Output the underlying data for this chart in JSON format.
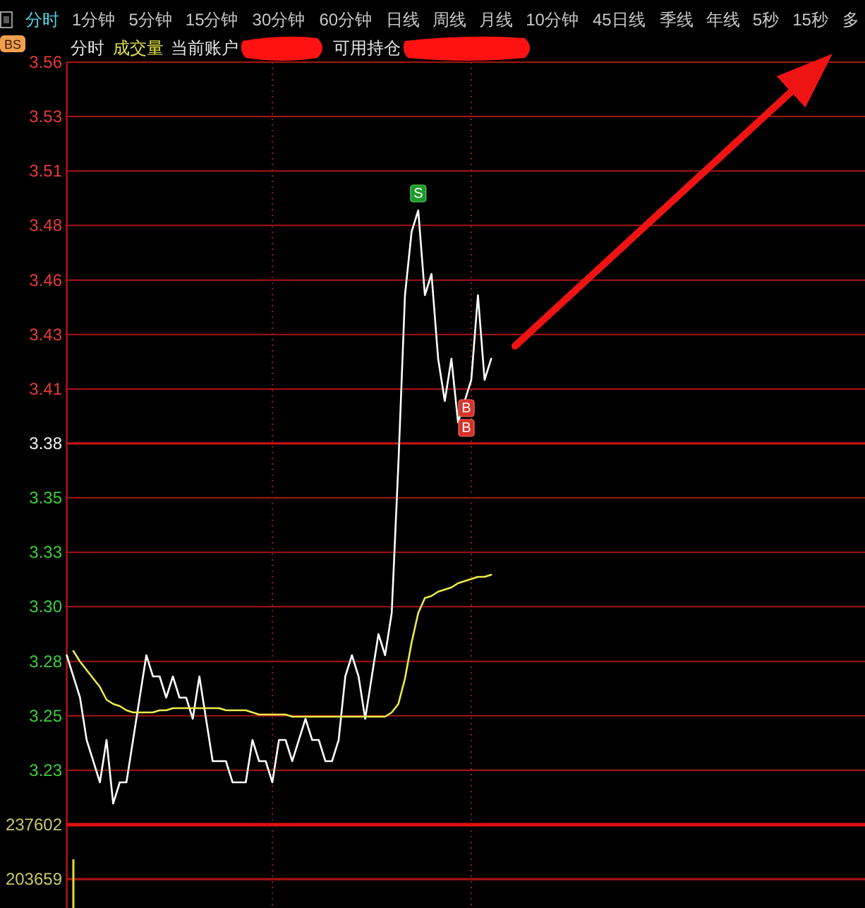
{
  "chart_data": [
    {
      "type": "other",
      "annotations": [
        "分时",
        "1分钟",
        "5分钟",
        "15分钟",
        "30分钟",
        "60分钟",
        "日线",
        "周线",
        "月线",
        "10分钟",
        "45日线",
        "季线",
        "年线",
        "5秒",
        "15秒",
        "多"
      ]
    },
    {
      "type": "line",
      "title": "分时",
      "categories": [
        null,
        null,
        null,
        null,
        null,
        null,
        null,
        null,
        null,
        null,
        null,
        null,
        null,
        null,
        null,
        null,
        null,
        null,
        null,
        null,
        null,
        null,
        null,
        null,
        null,
        null,
        null,
        null,
        null,
        null,
        null,
        null,
        null,
        null,
        null,
        null,
        null,
        null,
        null,
        null,
        null,
        null,
        null,
        null,
        null,
        null,
        null,
        null,
        null,
        null,
        null,
        null,
        null,
        null,
        null,
        null,
        null,
        null,
        null,
        null,
        null,
        null,
        null,
        null,
        null,
        null,
        null,
        null,
        null,
        null,
        null,
        null,
        null,
        null,
        null,
        null,
        null,
        null,
        null,
        null,
        null,
        null,
        null,
        null,
        null,
        null,
        null,
        null,
        null,
        null,
        null,
        null,
        null,
        null,
        null,
        null,
        null,
        null,
        null,
        null,
        null,
        null,
        null,
        null,
        null,
        null,
        null,
        null,
        null,
        null,
        null,
        null,
        null,
        null,
        null,
        null,
        null,
        null,
        null,
        null
      ],
      "series": [
        {
          "color": "#ffffff",
          "values": [
            3.28,
            3.27,
            3.26,
            3.24,
            3.23,
            3.22,
            3.24,
            3.21,
            3.22,
            3.22,
            3.24,
            3.26,
            3.28,
            3.27,
            3.27,
            3.26,
            3.27,
            3.26,
            3.26,
            3.25,
            3.27,
            3.25,
            3.23,
            3.23,
            3.23,
            3.22,
            3.22,
            3.22,
            3.24,
            3.23,
            3.23,
            3.22,
            3.24,
            3.24,
            3.23,
            3.24,
            3.25,
            3.24,
            3.24,
            3.23,
            3.23,
            3.24,
            3.27,
            3.28,
            3.27,
            3.25,
            3.27,
            3.29,
            3.28,
            3.3,
            3.37,
            3.45,
            3.48,
            3.49,
            3.45,
            3.46,
            3.42,
            3.4,
            3.42,
            3.39,
            3.4,
            3.41,
            3.45,
            3.41,
            3.42,
            null,
            null,
            null,
            null,
            null,
            null,
            null,
            null,
            null,
            null,
            null,
            null,
            null,
            null,
            null,
            null,
            null,
            null,
            null,
            null,
            null,
            null,
            null,
            null,
            null,
            null,
            null,
            null,
            null,
            null,
            null,
            null,
            null,
            null,
            null,
            null,
            null,
            null,
            null,
            null,
            null,
            null,
            null,
            null,
            null,
            null,
            null,
            null,
            null,
            null,
            null,
            null,
            null,
            null,
            null
          ]
        },
        {
          "color": "#ecec48",
          "values": [
            null,
            3.282,
            3.277,
            3.273,
            3.269,
            3.265,
            3.259,
            3.257,
            3.256,
            3.254,
            3.253,
            3.253,
            3.253,
            3.253,
            3.254,
            3.254,
            3.255,
            3.255,
            3.255,
            3.255,
            3.255,
            3.255,
            3.255,
            3.255,
            3.254,
            3.254,
            3.254,
            3.254,
            3.253,
            3.252,
            3.252,
            3.252,
            3.252,
            3.252,
            3.251,
            3.251,
            3.251,
            3.251,
            3.251,
            3.251,
            3.251,
            3.251,
            3.251,
            3.251,
            3.251,
            3.251,
            3.251,
            3.251,
            3.251,
            3.253,
            3.257,
            3.269,
            3.286,
            3.3,
            3.307,
            3.308,
            3.31,
            3.311,
            3.312,
            3.314,
            3.315,
            3.316,
            3.317,
            3.317,
            3.318,
            null,
            null,
            null,
            null,
            null,
            null,
            null,
            null,
            null,
            null,
            null,
            null,
            null,
            null,
            null,
            null,
            null,
            null,
            null,
            null,
            null,
            null,
            null,
            null,
            null,
            null,
            null,
            null,
            null,
            null,
            null,
            null,
            null,
            null,
            null,
            null,
            null,
            null,
            null,
            null,
            null,
            null,
            null,
            null,
            null,
            null,
            null,
            null,
            null,
            null,
            null,
            null,
            null,
            null,
            null
          ]
        }
      ],
      "ylim": [
        3.2,
        3.56
      ],
      "yticks": [
        {
          "value": 3.2257,
          "label": "3.23"
        },
        {
          "value": 3.2514,
          "label": "3.25"
        },
        {
          "value": 3.2771,
          "label": "3.28"
        },
        {
          "value": 3.3029,
          "label": "3.30"
        },
        {
          "value": 3.3286,
          "label": "3.33"
        },
        {
          "value": 3.3543,
          "label": "3.35"
        },
        3.38,
        {
          "value": 3.4057,
          "label": "3.41"
        },
        {
          "value": 3.4314,
          "label": "3.43"
        },
        {
          "value": 3.4571,
          "label": "3.46"
        },
        {
          "value": 3.4829,
          "label": "3.48"
        },
        {
          "value": 3.5086,
          "label": "3.51"
        },
        {
          "value": 3.5343,
          "label": "3.53"
        },
        3.56
      ],
      "grid": "y",
      "ref_lines": [
        {
          "axis": "y",
          "value": 3.38,
          "color": "#d01414"
        }
      ],
      "annotations": [
        "BS",
        "成交量",
        "当前账户",
        "可用持仓",
        {
          "text": "S",
          "y": 3.49
        },
        "B",
        "B"
      ]
    },
    {
      "type": "bar",
      "categories": [
        null,
        null,
        null,
        null,
        null,
        null,
        null,
        null,
        null,
        null,
        null,
        null,
        null,
        null,
        null,
        null,
        null,
        null,
        null,
        null,
        null,
        null,
        null,
        null,
        null,
        null,
        null,
        null,
        null,
        null,
        null,
        null,
        null,
        null,
        null,
        null,
        null,
        null,
        null,
        null,
        null,
        null,
        null,
        null,
        null,
        null,
        null,
        null,
        null,
        null,
        null,
        null,
        null,
        null,
        null,
        null,
        null,
        null,
        null,
        null,
        null,
        null,
        null,
        null,
        null,
        null,
        null,
        null,
        null,
        null,
        null,
        null,
        null,
        null,
        null,
        null,
        null,
        null,
        null,
        null,
        null,
        null,
        null,
        null,
        null,
        null,
        null,
        null,
        null,
        null,
        null,
        null,
        null,
        null,
        null,
        null,
        null,
        null,
        null,
        null,
        null,
        null,
        null,
        null,
        null,
        null,
        null,
        null,
        null,
        null,
        null,
        null,
        null,
        null,
        null,
        null,
        null,
        null,
        null,
        null
      ],
      "values": [
        null,
        216000,
        null,
        null,
        null,
        null,
        null,
        null,
        null,
        null,
        null,
        null,
        null,
        null,
        null,
        null,
        null,
        null,
        null,
        null,
        null,
        null,
        null,
        null,
        null,
        null,
        null,
        null,
        null,
        null,
        null,
        null,
        null,
        null,
        null,
        null,
        null,
        null,
        null,
        null,
        null,
        null,
        null,
        null,
        null,
        null,
        null,
        null,
        null,
        null,
        null,
        null,
        null,
        null,
        null,
        null,
        null,
        null,
        null,
        null,
        null,
        null,
        null,
        null,
        null,
        null,
        null,
        null,
        null,
        null,
        null,
        null,
        null,
        null,
        null,
        null,
        null,
        null,
        null,
        null,
        null,
        null,
        null,
        null,
        null,
        null,
        null,
        null,
        null,
        null,
        null,
        null,
        null,
        null,
        null,
        null,
        null,
        null,
        null,
        null,
        null,
        null,
        null,
        null,
        null,
        null,
        null,
        null,
        null,
        null,
        null,
        null,
        null,
        null,
        null,
        null,
        null,
        null,
        null,
        null
      ],
      "color": "#e0e030",
      "ylim": [
        185700,
        237602
      ],
      "yticks": [
        237602,
        203659
      ],
      "ref_lines": [
        {
          "axis": "y",
          "value": 203659,
          "color": "#a81414"
        }
      ]
    }
  ]
}
